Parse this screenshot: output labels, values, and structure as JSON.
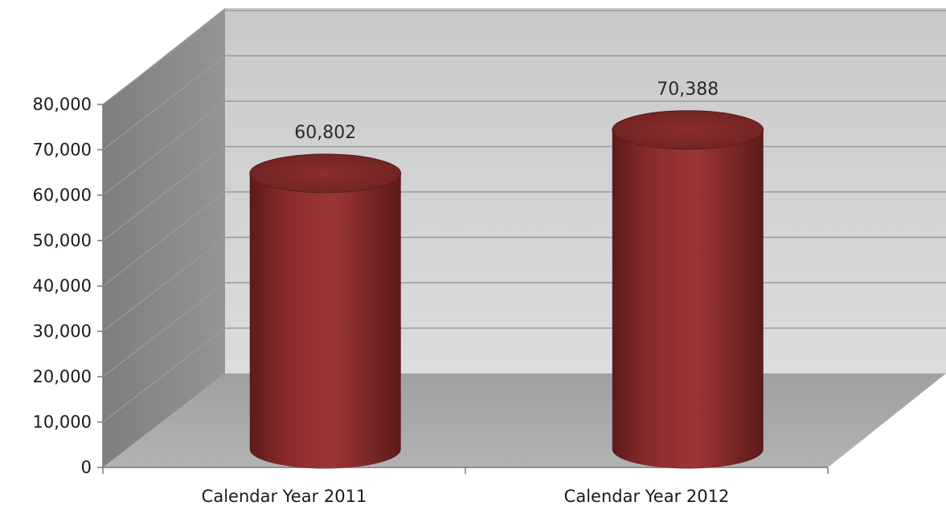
{
  "chart_data": {
    "type": "bar",
    "style": "3d-cylinder",
    "categories": [
      "Calendar Year 2011",
      "Calendar Year 2012"
    ],
    "values": [
      60802,
      70388
    ],
    "data_labels": [
      "60,802",
      "70,388"
    ],
    "ylim": [
      0,
      80000
    ],
    "y_ticks": [
      0,
      10000,
      20000,
      30000,
      40000,
      50000,
      60000,
      70000,
      80000
    ],
    "y_tick_labels": [
      "0",
      "10,000",
      "20,000",
      "30,000",
      "40,000",
      "50,000",
      "60,000",
      "70,000",
      "80,000"
    ],
    "title": "",
    "xlabel": "",
    "ylabel": "",
    "grid": true,
    "legend": "none",
    "colors": {
      "bar": "#8b2c2c",
      "back_wall": "#d2d2d2",
      "side_wall": "#8a8a8a",
      "floor": "#a8a8a8",
      "gridline": "#9a9a9a"
    }
  }
}
